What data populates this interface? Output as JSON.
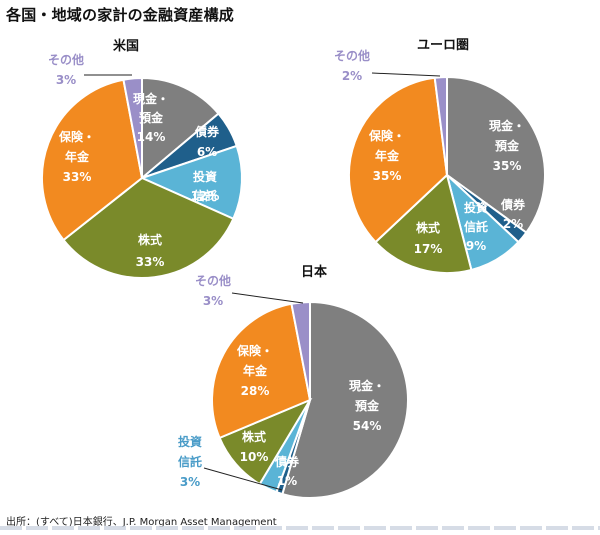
{
  "page": {
    "title": "各国・地域の家計の金融資産構成",
    "source": "出所：(すべて)日本銀行、J.P. Morgan Asset Management"
  },
  "colors": {
    "cash": "#7f7f7f",
    "bonds": "#1f5f8b",
    "funds": "#5ab4d6",
    "stocks": "#7a8a2a",
    "insurance": "#f28a20",
    "other": "#9a8fc8",
    "label_white": "#ffffff",
    "label_outside_other": "#9a8fc8",
    "label_outside_funds": "#4a9cc8"
  },
  "chart_data": [
    {
      "type": "pie",
      "title": "米国",
      "slices": [
        {
          "key": "cash",
          "label": "現金・預金",
          "value": 14,
          "value_label": "14%"
        },
        {
          "key": "bonds",
          "label": "債券",
          "value": 6,
          "value_label": "6%"
        },
        {
          "key": "funds",
          "label": "投資信託",
          "value": 12,
          "value_label": "12%"
        },
        {
          "key": "stocks",
          "label": "株式",
          "value": 33,
          "value_label": "33%"
        },
        {
          "key": "insurance",
          "label": "保険・年金",
          "value": 33,
          "value_label": "33%"
        },
        {
          "key": "other",
          "label": "その他",
          "value": 3,
          "value_label": "3%"
        }
      ]
    },
    {
      "type": "pie",
      "title": "ユーロ圏",
      "slices": [
        {
          "key": "cash",
          "label": "現金・預金",
          "value": 35,
          "value_label": "35%"
        },
        {
          "key": "bonds",
          "label": "債券",
          "value": 2,
          "value_label": "2%"
        },
        {
          "key": "funds",
          "label": "投資信託",
          "value": 9,
          "value_label": "9%"
        },
        {
          "key": "stocks",
          "label": "株式",
          "value": 17,
          "value_label": "17%"
        },
        {
          "key": "insurance",
          "label": "保険・年金",
          "value": 35,
          "value_label": "35%"
        },
        {
          "key": "other",
          "label": "その他",
          "value": 2,
          "value_label": "2%"
        }
      ]
    },
    {
      "type": "pie",
      "title": "日本",
      "slices": [
        {
          "key": "cash",
          "label": "現金・預金",
          "value": 54,
          "value_label": "54%"
        },
        {
          "key": "bonds",
          "label": "債券",
          "value": 1,
          "value_label": "1%"
        },
        {
          "key": "funds",
          "label": "投資信託",
          "value": 3,
          "value_label": "3%"
        },
        {
          "key": "stocks",
          "label": "株式",
          "value": 10,
          "value_label": "10%"
        },
        {
          "key": "insurance",
          "label": "保険・年金",
          "value": 28,
          "value_label": "28%"
        },
        {
          "key": "other",
          "label": "その他",
          "value": 3,
          "value_label": "3%"
        }
      ]
    }
  ]
}
